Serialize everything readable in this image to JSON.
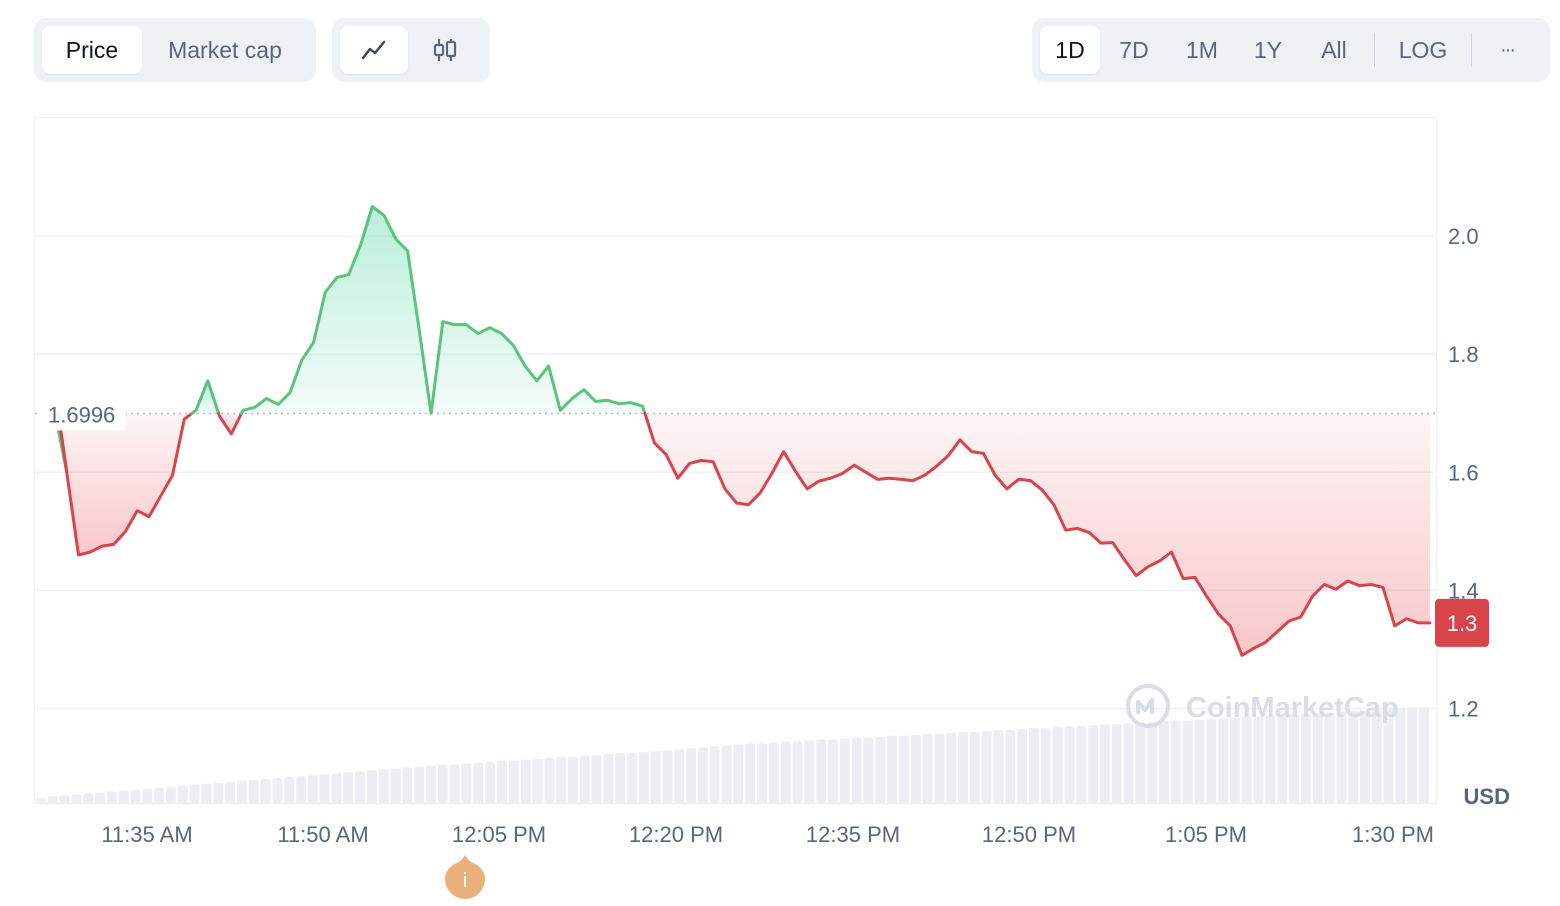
{
  "metric_tabs": [
    {
      "label": "Price",
      "active": true
    },
    {
      "label": "Market cap",
      "active": false
    }
  ],
  "chart_modes": [
    {
      "icon": "line-chart-icon",
      "active": true
    },
    {
      "icon": "candlestick-icon",
      "active": false
    }
  ],
  "ranges": [
    {
      "label": "1D",
      "active": true
    },
    {
      "label": "7D",
      "active": false
    },
    {
      "label": "1M",
      "active": false
    },
    {
      "label": "1Y",
      "active": false
    },
    {
      "label": "All",
      "active": false
    }
  ],
  "log_label": "LOG",
  "more_label": "···",
  "colors": {
    "up": "#16c784",
    "up_line": "#5ac47a",
    "down": "#ea3943",
    "down_line": "#d9434a",
    "current_badge": "#d9434a",
    "muted_text": "#58667e",
    "grid": "#eff2f5",
    "volume": "#eceef3",
    "event_marker": "#ebb17c"
  },
  "watermark": "CoinMarketCap",
  "event_marker_label": "i",
  "chart_data": {
    "type": "line",
    "reference_value": 1.6996,
    "reference_label": "1.6996",
    "current_value": 1.3,
    "current_label": "1.3",
    "currency_label": "USD",
    "ylim": [
      1.04,
      2.2
    ],
    "yticks": [
      1.2,
      1.4,
      1.6,
      1.8,
      2.0
    ],
    "ytick_labels": [
      "1.2",
      "1.4",
      "1.6",
      "1.8",
      "2.0"
    ],
    "x_tick_labels": [
      "11:35 AM",
      "11:50 AM",
      "12:05 PM",
      "12:20 PM",
      "12:35 PM",
      "12:50 PM",
      "1:05 PM",
      "1:30 PM"
    ],
    "grid": true,
    "series": [
      {
        "values": [
          1.6996,
          1.6,
          1.46,
          1.465,
          1.475,
          1.478,
          1.5,
          1.535,
          1.525,
          1.56,
          1.595,
          1.69,
          1.705,
          1.755,
          1.695,
          1.665,
          1.705,
          1.71,
          1.725,
          1.715,
          1.735,
          1.79,
          1.82,
          1.905,
          1.93,
          1.935,
          1.985,
          2.05,
          2.035,
          1.995,
          1.975,
          1.84,
          1.7,
          1.855,
          1.85,
          1.85,
          1.835,
          1.845,
          1.835,
          1.815,
          1.78,
          1.755,
          1.78,
          1.705,
          1.725,
          1.74,
          1.72,
          1.722,
          1.716,
          1.718,
          1.712,
          1.65,
          1.63,
          1.59,
          1.615,
          1.62,
          1.618,
          1.572,
          1.548,
          1.545,
          1.565,
          1.598,
          1.635,
          1.602,
          1.572,
          1.585,
          1.59,
          1.598,
          1.612,
          1.6,
          1.588,
          1.59,
          1.588,
          1.586,
          1.595,
          1.61,
          1.628,
          1.655,
          1.635,
          1.632,
          1.595,
          1.572,
          1.588,
          1.586,
          1.57,
          1.545,
          1.502,
          1.505,
          1.498,
          1.48,
          1.481,
          1.452,
          1.425,
          1.44,
          1.45,
          1.465,
          1.42,
          1.422,
          1.39,
          1.36,
          1.34,
          1.29,
          1.302,
          1.312,
          1.33,
          1.348,
          1.355,
          1.39,
          1.41,
          1.402,
          1.416,
          1.408,
          1.41,
          1.405,
          1.34,
          1.352,
          1.345,
          1.345
        ]
      }
    ],
    "volume": [
      0.05,
      0.07,
      0.08,
      0.09,
      0.1,
      0.11,
      0.12,
      0.13,
      0.14,
      0.15,
      0.16,
      0.17,
      0.18,
      0.19,
      0.2,
      0.21,
      0.22,
      0.23,
      0.24,
      0.25,
      0.26,
      0.27,
      0.28,
      0.29,
      0.3,
      0.31,
      0.32,
      0.33,
      0.34,
      0.35,
      0.36,
      0.37,
      0.38,
      0.39,
      0.4,
      0.4,
      0.41,
      0.42,
      0.43,
      0.44,
      0.44,
      0.45,
      0.46,
      0.47,
      0.48,
      0.48,
      0.49,
      0.5,
      0.51,
      0.52,
      0.52,
      0.53,
      0.54,
      0.55,
      0.56,
      0.57,
      0.58,
      0.59,
      0.6,
      0.61,
      0.62,
      0.62,
      0.63,
      0.64,
      0.64,
      0.65,
      0.66,
      0.66,
      0.67,
      0.68,
      0.68,
      0.69,
      0.7,
      0.7,
      0.71,
      0.72,
      0.72,
      0.73,
      0.74,
      0.74,
      0.75,
      0.76,
      0.76,
      0.77,
      0.78,
      0.78,
      0.79,
      0.8,
      0.8,
      0.81,
      0.82,
      0.82,
      0.83,
      0.84,
      0.84,
      0.85,
      0.86,
      0.86,
      0.87,
      0.88,
      0.88,
      0.89,
      0.9,
      0.9,
      0.91,
      0.92,
      0.92,
      0.93,
      0.94,
      0.94,
      0.95,
      0.96,
      0.96,
      0.97,
      0.98,
      0.99,
      1.0,
      1.0
    ]
  }
}
